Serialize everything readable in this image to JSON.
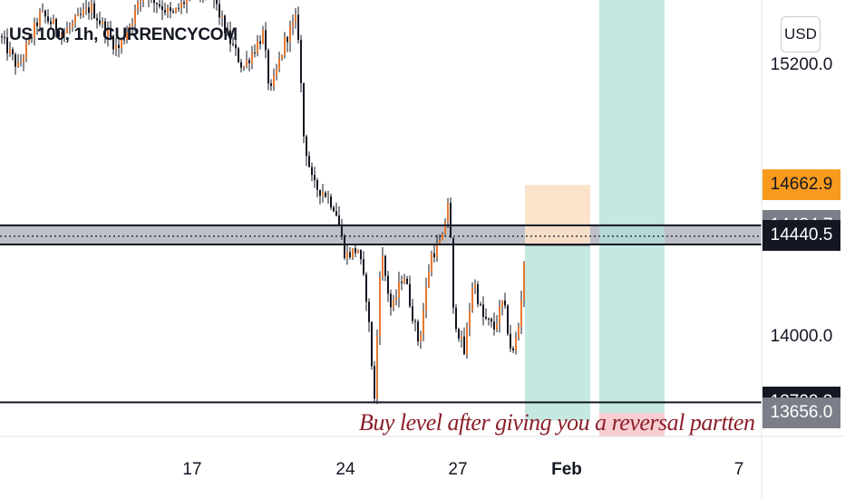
{
  "header": {
    "symbol_title": "US 100, 1h, CURRENCYCOM",
    "currency_label": "USD"
  },
  "annotation": {
    "note": "Buy level after giving you a reversal partten"
  },
  "colors": {
    "up_candle": "#e8772e",
    "down_candle": "#131722",
    "zone_fill": "#b2b5be",
    "target_fill": "#b2e0d7",
    "risk_fill": "#fbe0c6",
    "stop_fill": "#f8c9cd",
    "tag_orange": "#f79a1e",
    "tag_gray": "#7b7e88",
    "tag_black": "#131722",
    "note_color": "#8b1f2a"
  },
  "chart_data": {
    "type": "candlestick",
    "symbol": "US 100",
    "interval": "1h",
    "source": "CURRENCYCOM",
    "currency": "USD",
    "x_tick_labels": [
      "17",
      "24",
      "27",
      "Feb",
      "7"
    ],
    "y_tick_labels": [
      "15200.0",
      "14000.0"
    ],
    "price_tags": [
      {
        "value": "14662.9",
        "style": "orange"
      },
      {
        "value": "14484.7",
        "style": "gray"
      },
      {
        "value": "14440.5",
        "style": "black"
      },
      {
        "value": "13702.3",
        "style": "black"
      },
      {
        "value": "13656.0",
        "style": "gray"
      }
    ],
    "horizontal_levels": [
      14484.7,
      14400,
      13702.3
    ],
    "resistance_zone": [
      14400,
      14484.7
    ],
    "current_price": 14440.5,
    "position_tool": {
      "entry": 14400,
      "stop": 14662.9,
      "target": 13702.3
    },
    "trade_projection": {
      "entry": 14400,
      "stop": 13656.0,
      "target": 15530
    },
    "price_range": [
      13620,
      15600
    ],
    "key_swings": {
      "high": 15530,
      "resistance_test": 14640,
      "low": 13710,
      "last_close": 14440.5
    },
    "annotations": [
      "Buy level after giving you a reversal partten"
    ]
  }
}
